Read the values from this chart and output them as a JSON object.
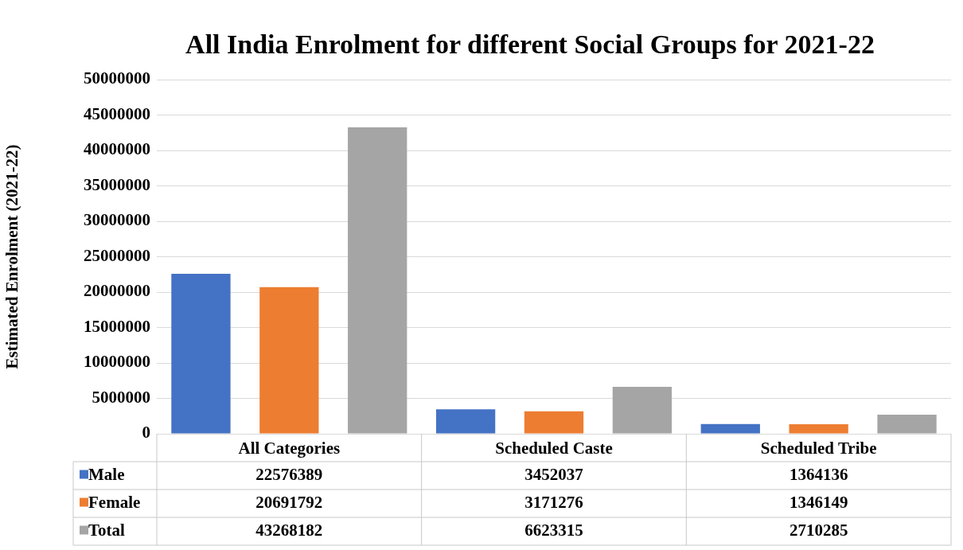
{
  "chart_data": {
    "type": "bar",
    "title": "All India Enrolment for different Social Groups for 2021-22",
    "ylabel": "Estimated Enrolment (2021-22)",
    "categories": [
      "All Categories",
      "Scheduled Caste",
      "Scheduled Tribe"
    ],
    "series": [
      {
        "name": "Male",
        "color": "#4472c4",
        "values": [
          22576389,
          3452037,
          1364136
        ]
      },
      {
        "name": "Female",
        "color": "#ed7d31",
        "values": [
          20691792,
          3171276,
          1346149
        ]
      },
      {
        "name": "Total",
        "color": "#a5a5a5",
        "values": [
          43268182,
          6623315,
          2710285
        ]
      }
    ],
    "ylim": [
      0,
      50000000
    ],
    "yticks": [
      0,
      5000000,
      10000000,
      15000000,
      20000000,
      25000000,
      30000000,
      35000000,
      40000000,
      45000000,
      50000000
    ],
    "grid": "y",
    "legend": "bottom",
    "data_labels": true
  }
}
